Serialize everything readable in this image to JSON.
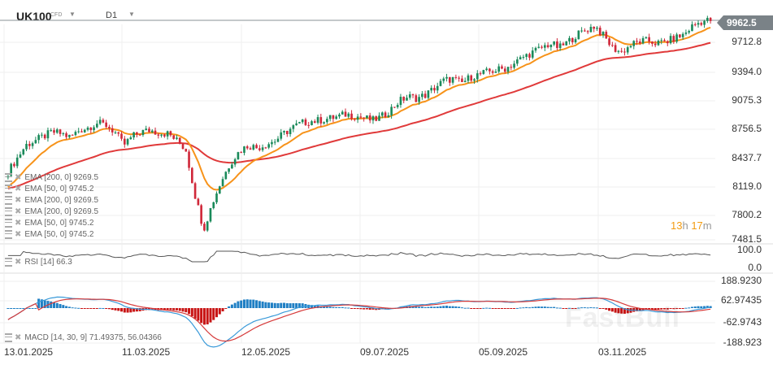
{
  "header": {
    "symbol": "UK100",
    "symbol_type": "CFD",
    "timeframe": "D1"
  },
  "current_price": "9962.5",
  "price_axis": [
    "9712.8",
    "9394.0",
    "9075.3",
    "8756.5",
    "8437.7",
    "8119.0",
    "7800.2",
    "7481.5"
  ],
  "rsi_axis": [
    "100.0",
    "0.0"
  ],
  "macd_axis": [
    "188.9230",
    "62.97435",
    "-62.9743",
    "-188.923"
  ],
  "date_axis": [
    "13.01.2025",
    "11.03.2025",
    "12.05.2025",
    "09.07.2025",
    "05.09.2025",
    "03.11.2025"
  ],
  "legend": [
    {
      "label": "EMA [200,  0]  9269.5"
    },
    {
      "label": "EMA [50,  0]  9745.2"
    },
    {
      "label": "EMA [200,  0]  9269.5"
    },
    {
      "label": "EMA [200,  0]  9269.5"
    },
    {
      "label": "EMA [50,  0]  9745.2"
    },
    {
      "label": "EMA [50,  0]  9745.2"
    }
  ],
  "rsi_legend": "RSI [14]  66.3",
  "macd_legend": "MACD [14, 30, 9]  71.49375,  56.04366",
  "countdown": {
    "hours": "13",
    "h": "h",
    "minutes": "17",
    "m": "m"
  },
  "watermark": "FastBull",
  "colors": {
    "up": "#1a8a5a",
    "down": "#d0283a",
    "ema50": "#f7931a",
    "ema200": "#e03a3a",
    "rsi": "#555555",
    "macd": "#3a9ad9",
    "signal": "#d63a3a",
    "hist_pos": "#1f7fc4",
    "hist_neg": "#c81414"
  },
  "chart_data": {
    "type": "candlestick",
    "title": "UK100 CFD D1",
    "x_ticks": [
      "13.01.2025",
      "11.03.2025",
      "12.05.2025",
      "09.07.2025",
      "05.09.2025",
      "03.11.2025"
    ],
    "y_ticks": [
      9712.8,
      9394.0,
      9075.3,
      8756.5,
      8437.7,
      8119.0,
      7800.2,
      7481.5
    ],
    "ylim": [
      7450,
      10050
    ],
    "last_price": 9962.5,
    "close_approx": [
      8250,
      8400,
      8550,
      8600,
      8650,
      8700,
      8680,
      8640,
      8720,
      8750,
      8800,
      8780,
      8700,
      8550,
      8650,
      8700,
      8720,
      8690,
      8680,
      8600,
      8500,
      8000,
      7600,
      7900,
      8150,
      8350,
      8480,
      8550,
      8520,
      8560,
      8600,
      8680,
      8750,
      8800,
      8820,
      8830,
      8850,
      8870,
      8900,
      8880,
      8860,
      8830,
      8870,
      8950,
      9050,
      9100,
      9080,
      9120,
      9200,
      9280,
      9300,
      9250,
      9320,
      9350,
      9380,
      9400,
      9420,
      9480,
      9550,
      9600,
      9650,
      9700,
      9650,
      9720,
      9800,
      9850,
      9900,
      9780,
      9650,
      9600,
      9680,
      9720,
      9730,
      9700,
      9720,
      9760,
      9800,
      9900,
      9950,
      9962
    ],
    "series": [
      {
        "name": "EMA 50",
        "last": 9745.2
      },
      {
        "name": "EMA 200",
        "last": 9269.5
      },
      {
        "name": "RSI 14",
        "last": 66.3
      },
      {
        "name": "MACD 14,30,9",
        "last": 71.49375,
        "signal": 56.04366
      }
    ]
  }
}
